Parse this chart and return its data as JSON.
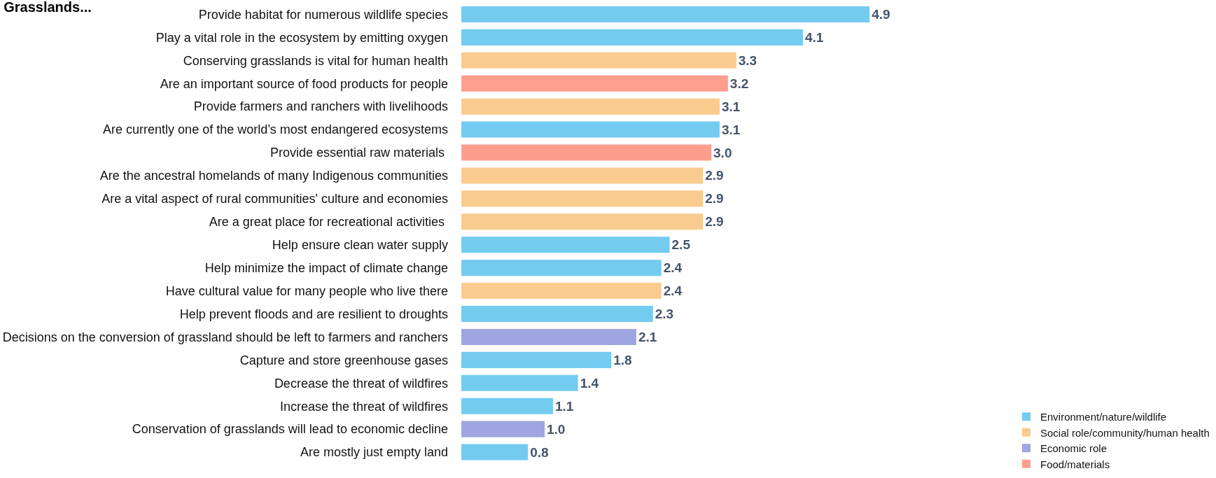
{
  "chart_data": {
    "type": "bar",
    "orientation": "horizontal",
    "title": "Grasslands...",
    "legend": "bottom right",
    "categories": [
      "Provide habitat for numerous wildlife species",
      "Play a vital role in the ecosystem by emitting oxygen",
      "Conserving grasslands is vital for human health",
      "Are an important source of food products for people",
      "Provide farmers and ranchers with livelihoods",
      "Are currently one of the world’s most endangered ecosystems",
      "Provide essential raw materials ",
      "Are the ancestral homelands of many Indigenous communities",
      "Are a vital aspect of rural communities' culture and economies",
      "Are a great place for recreational activities ",
      "Help ensure clean water supply",
      "Help minimize the impact of climate change",
      "Have cultural value for many people who live there",
      "Help prevent floods and are resilient to droughts",
      "Decisions on the conversion of grassland should be left to farmers and ranchers",
      "Capture and store greenhouse gases",
      "Decrease the threat of wildfires",
      "Increase the threat of wildfires",
      "Conservation of grasslands will lead to economic decline",
      "Are mostly just empty land"
    ],
    "series": [
      {
        "name": "Environment/nature/wildlife",
        "color": "#73cbef",
        "values": [
          4.9,
          4.1,
          null,
          null,
          null,
          3.1,
          null,
          null,
          null,
          null,
          2.5,
          2.4,
          null,
          2.3,
          null,
          1.8,
          1.4,
          1.1,
          null,
          0.8
        ],
        "value_labels": [
          "4.9",
          "4.1",
          null,
          null,
          null,
          "3.1",
          null,
          null,
          null,
          null,
          "2.5",
          "2.4",
          null,
          "2.3",
          null,
          "1.8",
          "1.4",
          "1.1",
          null,
          "0.8"
        ]
      },
      {
        "name": "Social role/community/human health",
        "color": "#f9cb8f",
        "values": [
          null,
          null,
          3.3,
          null,
          3.1,
          null,
          null,
          2.9,
          2.9,
          2.9,
          null,
          null,
          2.4,
          null,
          null,
          null,
          null,
          null,
          null,
          null
        ],
        "value_labels": [
          null,
          null,
          "3.3",
          null,
          "3.1",
          null,
          null,
          "2.9",
          "2.9",
          "2.9",
          null,
          null,
          "2.4",
          null,
          null,
          null,
          null,
          null,
          null,
          null
        ]
      },
      {
        "name": "Economic role",
        "color": "#9ea5e0",
        "values": [
          null,
          null,
          null,
          null,
          null,
          null,
          null,
          null,
          null,
          null,
          null,
          null,
          null,
          null,
          2.1,
          null,
          null,
          null,
          1.0,
          null
        ],
        "value_labels": [
          null,
          null,
          null,
          null,
          null,
          null,
          null,
          null,
          null,
          null,
          null,
          null,
          null,
          null,
          "2.1",
          null,
          null,
          null,
          "1.0",
          null
        ]
      },
      {
        "name": "Food/materials",
        "color": "#fe9e8f",
        "values": [
          null,
          null,
          null,
          3.2,
          null,
          null,
          3.0,
          null,
          null,
          null,
          null,
          null,
          null,
          null,
          null,
          null,
          null,
          null,
          null,
          null
        ],
        "value_labels": [
          null,
          null,
          null,
          "3.2",
          null,
          null,
          "3.0",
          null,
          null,
          null,
          null,
          null,
          null,
          null,
          null,
          null,
          null,
          null,
          null,
          null
        ]
      }
    ]
  }
}
